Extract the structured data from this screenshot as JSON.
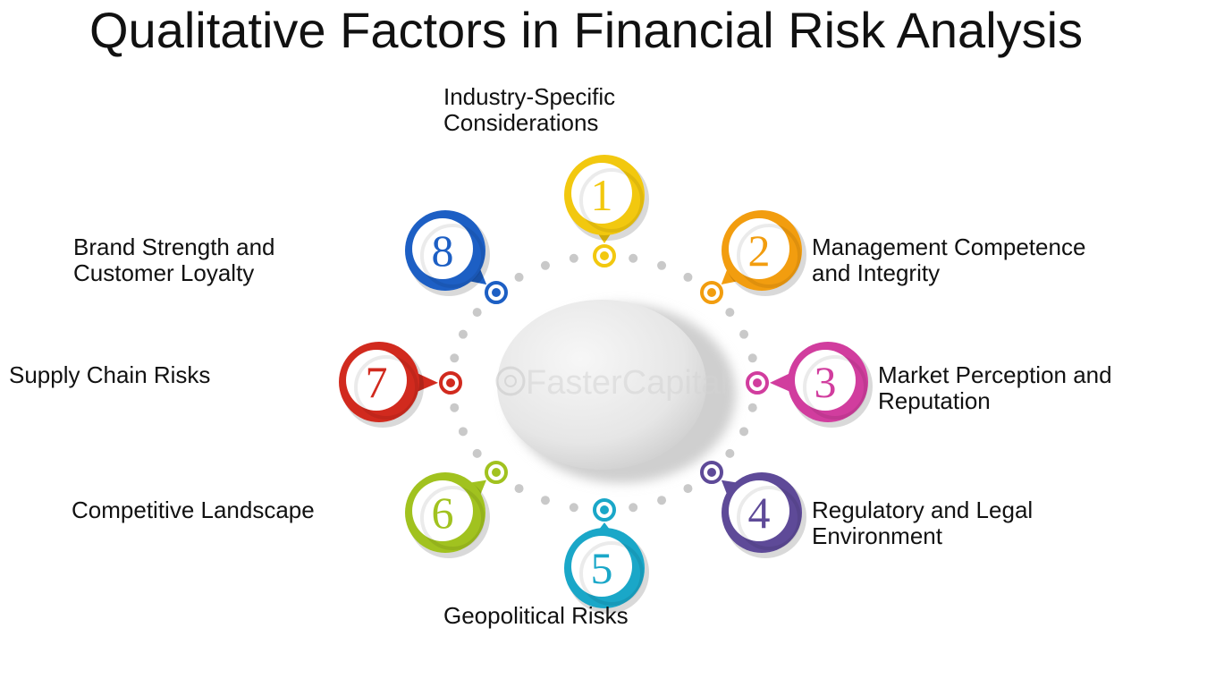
{
  "title": "Qualitative Factors in Financial Risk Analysis",
  "watermark": "FasterCapital",
  "factors": [
    {
      "number": "1",
      "label": "Industry-Specific\nConsiderations",
      "color": "#f2c80f",
      "icon": "yellow-pin-icon"
    },
    {
      "number": "2",
      "label": "Management Competence\nand Integrity",
      "color": "#f29d0f",
      "icon": "orange-pin-icon"
    },
    {
      "number": "3",
      "label": "Market Perception and\nReputation",
      "color": "#d13d9e",
      "icon": "magenta-pin-icon"
    },
    {
      "number": "4",
      "label": "Regulatory and Legal\nEnvironment",
      "color": "#5e4a98",
      "icon": "purple-pin-icon"
    },
    {
      "number": "5",
      "label": "Geopolitical Risks",
      "color": "#1aa7c8",
      "icon": "cyan-pin-icon"
    },
    {
      "number": "6",
      "label": "Competitive Landscape",
      "color": "#a1c21f",
      "icon": "green-pin-icon"
    },
    {
      "number": "7",
      "label": "Supply Chain Risks",
      "color": "#d12a1e",
      "icon": "red-pin-icon"
    },
    {
      "number": "8",
      "label": "Brand Strength and\nCustomer Loyalty",
      "color": "#1d5fc4",
      "icon": "blue-pin-icon"
    }
  ]
}
